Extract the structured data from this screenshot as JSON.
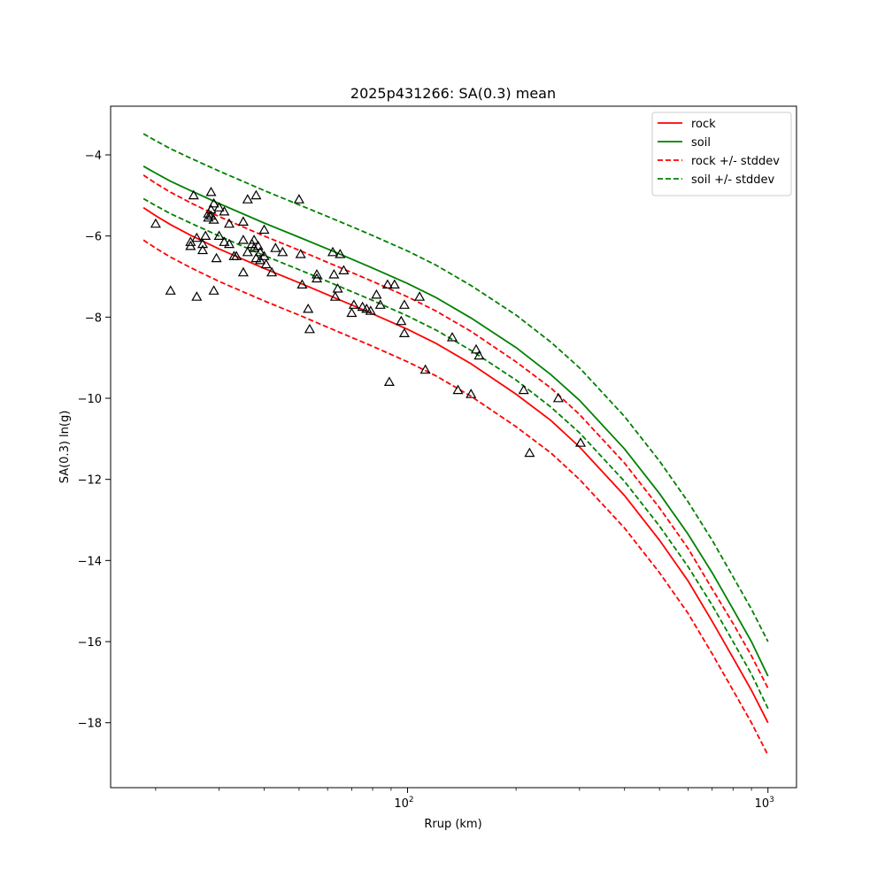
{
  "chart_data": {
    "type": "line",
    "title": "2025p431266: SA(0.3) mean",
    "xlabel": "Rrup (km)",
    "ylabel": "SA(0.3) ln(g)",
    "x_scale": "log",
    "xlim": [
      15,
      1200
    ],
    "ylim": [
      -19.6,
      -2.8
    ],
    "x_ticks": [
      {
        "value": 100,
        "base": "10",
        "exp": "2"
      },
      {
        "value": 1000,
        "base": "10",
        "exp": "3"
      }
    ],
    "x_minor_ticks": [
      20,
      30,
      40,
      50,
      60,
      70,
      80,
      90,
      200,
      300,
      400,
      500,
      600,
      700,
      800,
      900
    ],
    "y_ticks": [
      -18,
      -16,
      -14,
      -12,
      -10,
      -8,
      -6,
      -4
    ],
    "y_tick_labels": [
      "−18",
      "−16",
      "−14",
      "−12",
      "−10",
      "−8",
      "−6",
      "−4"
    ],
    "grid": false,
    "legend_position": "top-right",
    "series": [
      {
        "name": "rock",
        "color": "#ff0000",
        "dash": "solid",
        "points": [
          [
            18.5,
            -5.3
          ],
          [
            20,
            -5.5
          ],
          [
            22,
            -5.72
          ],
          [
            25,
            -5.98
          ],
          [
            30,
            -6.32
          ],
          [
            40,
            -6.8
          ],
          [
            50,
            -7.15
          ],
          [
            60,
            -7.45
          ],
          [
            70,
            -7.7
          ],
          [
            80,
            -7.92
          ],
          [
            100,
            -8.3
          ],
          [
            120,
            -8.65
          ],
          [
            150,
            -9.15
          ],
          [
            200,
            -9.9
          ],
          [
            250,
            -10.55
          ],
          [
            300,
            -11.2
          ],
          [
            400,
            -12.4
          ],
          [
            500,
            -13.5
          ],
          [
            600,
            -14.5
          ],
          [
            700,
            -15.5
          ],
          [
            800,
            -16.4
          ],
          [
            900,
            -17.2
          ],
          [
            1000,
            -18.0
          ]
        ]
      },
      {
        "name": "soil",
        "color": "#008000",
        "dash": "solid",
        "points": [
          [
            18.5,
            -4.28
          ],
          [
            20,
            -4.45
          ],
          [
            22,
            -4.65
          ],
          [
            25,
            -4.88
          ],
          [
            30,
            -5.2
          ],
          [
            40,
            -5.68
          ],
          [
            50,
            -6.03
          ],
          [
            60,
            -6.32
          ],
          [
            70,
            -6.57
          ],
          [
            80,
            -6.79
          ],
          [
            100,
            -7.17
          ],
          [
            120,
            -7.52
          ],
          [
            150,
            -8.02
          ],
          [
            200,
            -8.75
          ],
          [
            250,
            -9.42
          ],
          [
            300,
            -10.05
          ],
          [
            400,
            -11.25
          ],
          [
            500,
            -12.35
          ],
          [
            600,
            -13.35
          ],
          [
            700,
            -14.3
          ],
          [
            800,
            -15.2
          ],
          [
            900,
            -16.0
          ],
          [
            1000,
            -16.85
          ]
        ]
      },
      {
        "name": "rock +/- stddev",
        "color": "#ff0000",
        "dash": "dashed",
        "points": [
          [
            18.5,
            -4.5
          ],
          [
            20,
            -4.7
          ],
          [
            22,
            -4.92
          ],
          [
            25,
            -5.18
          ],
          [
            30,
            -5.52
          ],
          [
            40,
            -6.0
          ],
          [
            50,
            -6.35
          ],
          [
            60,
            -6.65
          ],
          [
            70,
            -6.9
          ],
          [
            80,
            -7.12
          ],
          [
            100,
            -7.5
          ],
          [
            120,
            -7.85
          ],
          [
            150,
            -8.35
          ],
          [
            200,
            -9.1
          ],
          [
            250,
            -9.75
          ],
          [
            300,
            -10.4
          ],
          [
            400,
            -11.6
          ],
          [
            500,
            -12.7
          ],
          [
            600,
            -13.7
          ],
          [
            700,
            -14.7
          ],
          [
            800,
            -15.55
          ],
          [
            900,
            -16.35
          ],
          [
            1000,
            -17.15
          ]
        ]
      },
      {
        "name": "",
        "color": "#ff0000",
        "dash": "dashed",
        "points": [
          [
            18.5,
            -6.1
          ],
          [
            20,
            -6.3
          ],
          [
            22,
            -6.52
          ],
          [
            25,
            -6.78
          ],
          [
            30,
            -7.12
          ],
          [
            40,
            -7.6
          ],
          [
            50,
            -7.95
          ],
          [
            60,
            -8.25
          ],
          [
            70,
            -8.5
          ],
          [
            80,
            -8.72
          ],
          [
            100,
            -9.1
          ],
          [
            120,
            -9.45
          ],
          [
            150,
            -9.95
          ],
          [
            200,
            -10.7
          ],
          [
            250,
            -11.35
          ],
          [
            300,
            -12.0
          ],
          [
            400,
            -13.2
          ],
          [
            500,
            -14.3
          ],
          [
            600,
            -15.3
          ],
          [
            700,
            -16.3
          ],
          [
            800,
            -17.2
          ],
          [
            900,
            -18.0
          ],
          [
            1000,
            -18.8
          ]
        ]
      },
      {
        "name": "soil +/- stddev",
        "color": "#008000",
        "dash": "dashed",
        "points": [
          [
            18.5,
            -3.48
          ],
          [
            20,
            -3.65
          ],
          [
            22,
            -3.85
          ],
          [
            25,
            -4.08
          ],
          [
            30,
            -4.4
          ],
          [
            40,
            -4.88
          ],
          [
            50,
            -5.23
          ],
          [
            60,
            -5.52
          ],
          [
            70,
            -5.77
          ],
          [
            80,
            -5.99
          ],
          [
            100,
            -6.37
          ],
          [
            120,
            -6.72
          ],
          [
            150,
            -7.22
          ],
          [
            200,
            -7.95
          ],
          [
            250,
            -8.62
          ],
          [
            300,
            -9.25
          ],
          [
            400,
            -10.45
          ],
          [
            500,
            -11.55
          ],
          [
            600,
            -12.55
          ],
          [
            700,
            -13.5
          ],
          [
            800,
            -14.4
          ],
          [
            900,
            -15.2
          ],
          [
            1000,
            -16.0
          ]
        ]
      },
      {
        "name": "",
        "color": "#008000",
        "dash": "dashed",
        "points": [
          [
            18.5,
            -5.08
          ],
          [
            20,
            -5.25
          ],
          [
            22,
            -5.45
          ],
          [
            25,
            -5.68
          ],
          [
            30,
            -6.0
          ],
          [
            40,
            -6.48
          ],
          [
            50,
            -6.83
          ],
          [
            60,
            -7.12
          ],
          [
            70,
            -7.37
          ],
          [
            80,
            -7.59
          ],
          [
            100,
            -7.97
          ],
          [
            120,
            -8.32
          ],
          [
            150,
            -8.82
          ],
          [
            200,
            -9.55
          ],
          [
            250,
            -10.22
          ],
          [
            300,
            -10.85
          ],
          [
            400,
            -12.05
          ],
          [
            500,
            -13.15
          ],
          [
            600,
            -14.15
          ],
          [
            700,
            -15.1
          ],
          [
            800,
            -16.0
          ],
          [
            900,
            -16.8
          ],
          [
            1000,
            -17.65
          ]
        ]
      }
    ],
    "observations": {
      "marker": "triangle",
      "color": "#000000",
      "points": [
        [
          20,
          -5.7
        ],
        [
          22,
          -7.35
        ],
        [
          25,
          -6.15
        ],
        [
          25,
          -6.25
        ],
        [
          25.5,
          -5.0
        ],
        [
          26,
          -7.5
        ],
        [
          26,
          -6.05
        ],
        [
          27,
          -6.2
        ],
        [
          27,
          -6.35
        ],
        [
          27.5,
          -6.0
        ],
        [
          28,
          -5.55
        ],
        [
          28,
          -5.45
        ],
        [
          28.5,
          -5.35
        ],
        [
          28.5,
          -5.5
        ],
        [
          28.5,
          -4.92
        ],
        [
          29,
          -5.2
        ],
        [
          29,
          -5.6
        ],
        [
          29,
          -7.35
        ],
        [
          29.5,
          -6.55
        ],
        [
          30,
          -5.3
        ],
        [
          30,
          -6.0
        ],
        [
          31,
          -5.4
        ],
        [
          31,
          -6.15
        ],
        [
          32,
          -5.7
        ],
        [
          32,
          -6.2
        ],
        [
          33,
          -6.5
        ],
        [
          33.5,
          -6.5
        ],
        [
          35,
          -5.65
        ],
        [
          35,
          -6.1
        ],
        [
          35,
          -6.9
        ],
        [
          36,
          -5.1
        ],
        [
          36,
          -6.4
        ],
        [
          37,
          -6.2
        ],
        [
          37.5,
          -6.1
        ],
        [
          37.5,
          -6.3
        ],
        [
          38,
          -5.0
        ],
        [
          38,
          -6.55
        ],
        [
          38.5,
          -6.25
        ],
        [
          39,
          -6.4
        ],
        [
          39,
          -6.6
        ],
        [
          40,
          -5.85
        ],
        [
          40,
          -6.5
        ],
        [
          40.5,
          -6.7
        ],
        [
          42,
          -6.9
        ],
        [
          43,
          -6.3
        ],
        [
          45,
          -6.4
        ],
        [
          50,
          -5.1
        ],
        [
          50.5,
          -6.45
        ],
        [
          51,
          -7.2
        ],
        [
          53,
          -7.8
        ],
        [
          53.5,
          -8.3
        ],
        [
          56,
          -6.95
        ],
        [
          56,
          -7.05
        ],
        [
          62,
          -6.4
        ],
        [
          62.5,
          -6.95
        ],
        [
          63,
          -7.5
        ],
        [
          64,
          -7.3
        ],
        [
          65,
          -6.45
        ],
        [
          66.5,
          -6.85
        ],
        [
          70,
          -7.9
        ],
        [
          71,
          -7.7
        ],
        [
          75,
          -7.75
        ],
        [
          77,
          -7.8
        ],
        [
          79,
          -7.85
        ],
        [
          82,
          -7.45
        ],
        [
          84,
          -7.7
        ],
        [
          88,
          -7.2
        ],
        [
          89,
          -9.6
        ],
        [
          92,
          -7.2
        ],
        [
          96,
          -8.1
        ],
        [
          98,
          -8.4
        ],
        [
          98,
          -7.7
        ],
        [
          108,
          -7.5
        ],
        [
          112,
          -9.3
        ],
        [
          133,
          -8.5
        ],
        [
          138,
          -9.8
        ],
        [
          150,
          -9.9
        ],
        [
          155,
          -8.8
        ],
        [
          158,
          -8.95
        ],
        [
          210,
          -9.8
        ],
        [
          218,
          -11.35
        ],
        [
          262,
          -10.0
        ],
        [
          302,
          -11.1
        ]
      ]
    }
  }
}
